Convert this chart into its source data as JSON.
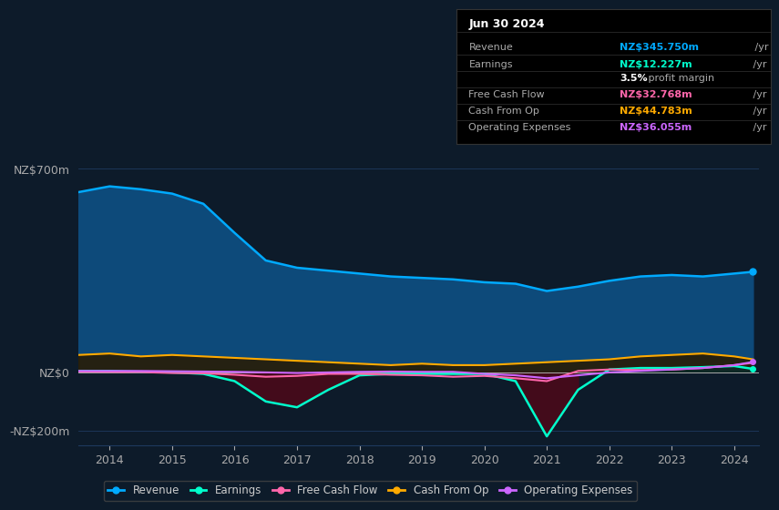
{
  "bg_color": "#0d1b2a",
  "chart_bg": "#0d1b2a",
  "grid_color": "#1e3a5f",
  "title_box": {
    "date": "Jun 30 2024",
    "rows": [
      {
        "label": "Revenue",
        "value": "NZ$345.750m",
        "unit": " /yr",
        "color": "#00aaff"
      },
      {
        "label": "Earnings",
        "value": "NZ$12.227m",
        "unit": " /yr",
        "color": "#00ffcc"
      },
      {
        "label": "",
        "value": "3.5%",
        "unit": " profit margin",
        "color": "#ffffff"
      },
      {
        "label": "Free Cash Flow",
        "value": "NZ$32.768m",
        "unit": " /yr",
        "color": "#ff66aa"
      },
      {
        "label": "Cash From Op",
        "value": "NZ$44.783m",
        "unit": " /yr",
        "color": "#ffaa00"
      },
      {
        "label": "Operating Expenses",
        "value": "NZ$36.055m",
        "unit": " /yr",
        "color": "#cc66ff"
      }
    ]
  },
  "years": [
    2013.5,
    2014,
    2014.5,
    2015,
    2015.5,
    2016,
    2016.5,
    2017,
    2017.5,
    2018,
    2018.5,
    2019,
    2019.5,
    2020,
    2020.5,
    2021,
    2021.5,
    2022,
    2022.5,
    2023,
    2023.5,
    2024,
    2024.3
  ],
  "revenue": [
    620,
    640,
    630,
    615,
    580,
    480,
    385,
    360,
    350,
    340,
    330,
    325,
    320,
    310,
    305,
    280,
    295,
    315,
    330,
    335,
    330,
    340,
    346
  ],
  "earnings": [
    5,
    5,
    2,
    0,
    -5,
    -30,
    -100,
    -120,
    -60,
    -10,
    -5,
    -5,
    -5,
    -5,
    -30,
    -220,
    -60,
    10,
    15,
    15,
    18,
    22,
    12
  ],
  "free_cf": [
    3,
    2,
    1,
    -2,
    -3,
    -8,
    -15,
    -12,
    -5,
    -5,
    -8,
    -10,
    -15,
    -12,
    -20,
    -30,
    5,
    10,
    8,
    10,
    15,
    25,
    33
  ],
  "cash_from_op": [
    60,
    65,
    55,
    60,
    55,
    50,
    45,
    40,
    35,
    30,
    25,
    30,
    25,
    25,
    30,
    35,
    40,
    45,
    55,
    60,
    65,
    55,
    45
  ],
  "op_expenses": [
    5,
    5,
    5,
    4,
    3,
    2,
    0,
    -2,
    0,
    2,
    3,
    2,
    2,
    -5,
    -10,
    -20,
    -10,
    0,
    5,
    10,
    15,
    25,
    36
  ],
  "ylim": [
    -250,
    750
  ],
  "yticks": [
    -200,
    0,
    700
  ],
  "ytick_labels": [
    "-NZ$200m",
    "NZ$0",
    "NZ$700m"
  ],
  "xticks": [
    2014,
    2015,
    2016,
    2017,
    2018,
    2019,
    2020,
    2021,
    2022,
    2023,
    2024
  ],
  "revenue_color": "#00aaff",
  "revenue_fill": "#0d4a7a",
  "earnings_color": "#00ffcc",
  "free_cf_color": "#ff66aa",
  "cash_from_op_color": "#ffaa00",
  "op_expenses_color": "#cc66ff",
  "legend_items": [
    {
      "label": "Revenue",
      "color": "#00aaff",
      "lw": 2
    },
    {
      "label": "Earnings",
      "color": "#00ffcc",
      "lw": 2
    },
    {
      "label": "Free Cash Flow",
      "color": "#ff66aa",
      "lw": 2
    },
    {
      "label": "Cash From Op",
      "color": "#ffaa00",
      "lw": 2
    },
    {
      "label": "Operating Expenses",
      "color": "#cc66ff",
      "lw": 2
    }
  ]
}
